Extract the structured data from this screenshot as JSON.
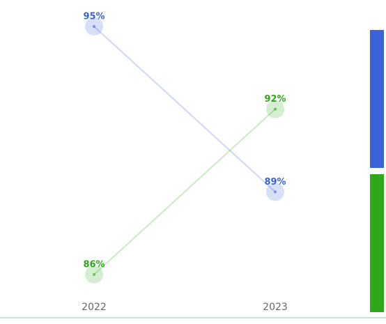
{
  "chart_data": {
    "type": "slope",
    "categories": [
      "2022",
      "2023"
    ],
    "series": [
      {
        "color": "#3a63d8",
        "values": [
          95,
          89
        ],
        "value_labels": [
          "95%",
          "89%"
        ]
      },
      {
        "color": "#2ea81a",
        "values": [
          86,
          92
        ],
        "value_labels": [
          "86%",
          "92%"
        ]
      }
    ]
  }
}
